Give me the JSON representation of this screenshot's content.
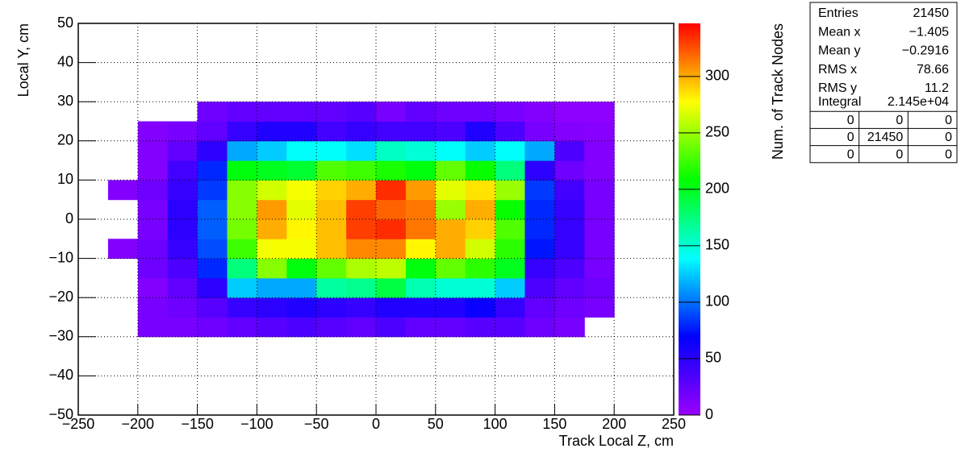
{
  "chart_data": {
    "type": "heatmap",
    "x_label": "Track Local Z, cm",
    "y_label": "Local Y, cm",
    "z_label": "Num. of Track Nodes",
    "xlim": [
      -250,
      250
    ],
    "xticks": [
      {
        "value": -250,
        "label": "−250"
      },
      {
        "value": -200,
        "label": "−200"
      },
      {
        "value": -150,
        "label": "−150"
      },
      {
        "value": -100,
        "label": "−100"
      },
      {
        "value": -50,
        "label": "−50"
      },
      0,
      50,
      100,
      150,
      200,
      250
    ],
    "ylim": [
      -50,
      50
    ],
    "yticks": [
      {
        "value": -50,
        "label": "−50"
      },
      {
        "value": -40,
        "label": "−40"
      },
      {
        "value": -30,
        "label": "−30"
      },
      {
        "value": -20,
        "label": "−20"
      },
      {
        "value": -10,
        "label": "−10"
      },
      0,
      10,
      20,
      30,
      40,
      50
    ],
    "zlim": [
      0,
      347
    ],
    "zticks": [
      0,
      50,
      100,
      150,
      200,
      250,
      300
    ],
    "grid": true,
    "palette": [
      "#9900ff",
      "#0000ff",
      "#00ffff",
      "#00ff00",
      "#ffff00",
      "#ff0000"
    ],
    "xbins": [
      -225,
      -200,
      -175,
      -150,
      -125,
      -100,
      -75,
      -50,
      -25,
      0,
      25,
      50,
      75,
      100,
      125,
      150,
      175,
      200
    ],
    "ybins": [
      -30,
      -25,
      -20,
      -15,
      -10,
      -5,
      0,
      5,
      10,
      15,
      20,
      25,
      30
    ],
    "values": [
      [
        null,
        15,
        15,
        20,
        25,
        30,
        35,
        30,
        25,
        35,
        25,
        25,
        30,
        30,
        20,
        15,
        null
      ],
      [
        null,
        15,
        20,
        30,
        45,
        50,
        55,
        50,
        45,
        55,
        55,
        55,
        65,
        45,
        25,
        20,
        15
      ],
      [
        null,
        10,
        25,
        50,
        125,
        115,
        115,
        165,
        170,
        190,
        160,
        150,
        150,
        125,
        35,
        25,
        20
      ],
      [
        null,
        20,
        35,
        80,
        175,
        245,
        205,
        235,
        255,
        260,
        205,
        235,
        220,
        200,
        45,
        35,
        15
      ],
      [
        10,
        20,
        45,
        90,
        225,
        275,
        275,
        295,
        310,
        310,
        280,
        300,
        265,
        220,
        75,
        45,
        15
      ],
      [
        null,
        15,
        50,
        95,
        240,
        300,
        280,
        295,
        330,
        335,
        315,
        300,
        290,
        230,
        80,
        45,
        15
      ],
      [
        null,
        15,
        50,
        95,
        245,
        305,
        270,
        295,
        330,
        320,
        315,
        250,
        300,
        210,
        80,
        45,
        15
      ],
      [
        10,
        20,
        45,
        85,
        245,
        265,
        275,
        290,
        300,
        335,
        305,
        270,
        285,
        250,
        85,
        40,
        15
      ],
      [
        null,
        10,
        40,
        80,
        205,
        200,
        195,
        230,
        225,
        215,
        205,
        235,
        210,
        175,
        50,
        20,
        10
      ],
      [
        null,
        10,
        25,
        50,
        115,
        125,
        140,
        140,
        130,
        155,
        150,
        140,
        125,
        140,
        115,
        35,
        10
      ],
      [
        null,
        10,
        15,
        25,
        45,
        55,
        55,
        40,
        45,
        40,
        40,
        35,
        55,
        35,
        15,
        10,
        8
      ],
      [
        null,
        null,
        null,
        20,
        25,
        25,
        25,
        25,
        30,
        15,
        25,
        20,
        20,
        15,
        10,
        5,
        5
      ]
    ],
    "stats": {
      "rows": [
        [
          "Entries",
          "21450"
        ],
        [
          "Mean x",
          "−1.405"
        ],
        [
          "Mean y",
          "−0.2916"
        ],
        [
          "RMS x",
          "78.66"
        ],
        [
          "RMS y",
          "11.2"
        ],
        [
          "Integral",
          "2.145e+04"
        ]
      ],
      "table": [
        [
          0,
          0,
          0
        ],
        [
          0,
          21450,
          0
        ],
        [
          0,
          0,
          0
        ]
      ]
    }
  }
}
